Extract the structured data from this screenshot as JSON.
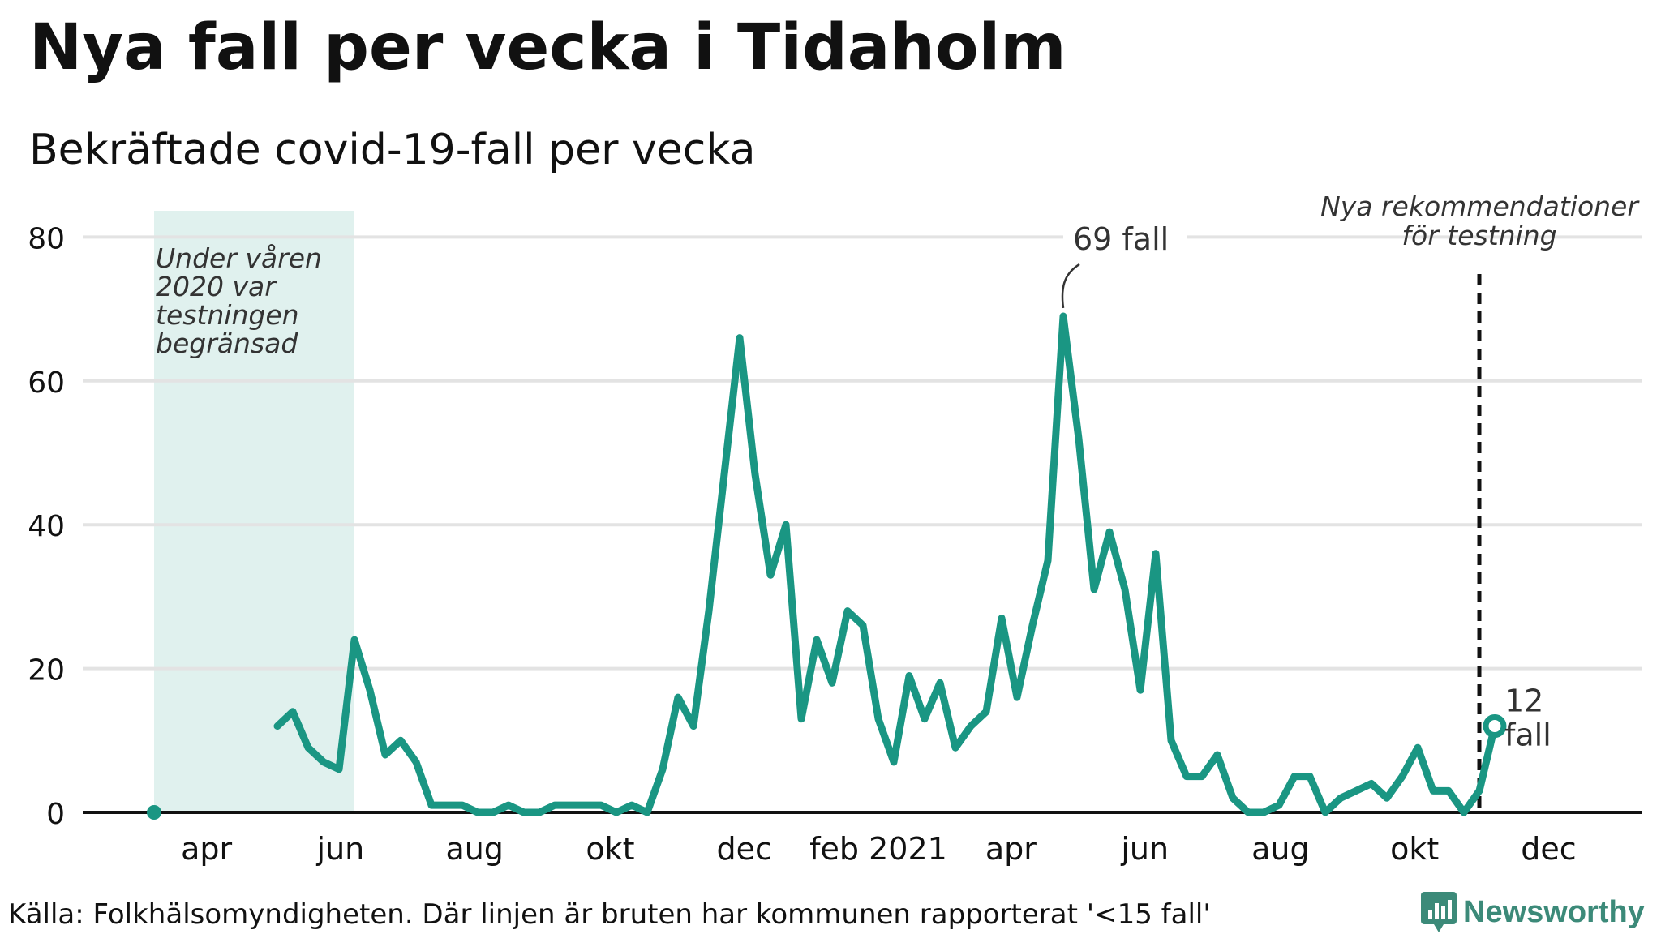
{
  "chart_data": {
    "type": "line",
    "title": "Nya fall per vecka i Tidaholm",
    "subtitle": "Bekräftade covid-19-fall per vecka",
    "xlabel": "",
    "ylabel": "",
    "ylim": [
      0,
      80
    ],
    "yticks": [
      0,
      20,
      40,
      60,
      80
    ],
    "xlim_weeks": [
      0,
      97
    ],
    "x_tick_labels": [
      {
        "label": "apr",
        "week": 3.4
      },
      {
        "label": "jun",
        "week": 12.1
      },
      {
        "label": "aug",
        "week": 20.8
      },
      {
        "label": "okt",
        "week": 29.6
      },
      {
        "label": "dec",
        "week": 38.3
      },
      {
        "label": "feb 2021",
        "week": 47.0
      },
      {
        "label": "apr",
        "week": 55.6
      },
      {
        "label": "jun",
        "week": 64.3
      },
      {
        "label": "aug",
        "week": 73.1
      },
      {
        "label": "okt",
        "week": 81.8
      },
      {
        "label": "dec",
        "week": 90.5
      }
    ],
    "series": [
      {
        "name": "Bekräftade covid-19-fall per vecka",
        "color": "#1a9683",
        "segments": [
          {
            "start_week": 0,
            "values": [
              0
            ]
          },
          {
            "start_week": 8,
            "values": [
              12,
              14,
              9,
              7,
              6,
              24,
              17,
              8,
              10,
              7,
              1,
              1,
              1,
              0,
              0,
              1,
              0,
              0,
              1,
              1,
              1,
              1,
              0,
              1,
              0,
              6,
              16,
              12,
              28,
              47,
              66,
              47,
              33,
              40,
              13,
              24,
              18,
              28,
              26,
              13,
              7,
              19,
              13,
              18,
              9,
              12,
              14,
              27,
              16,
              26,
              35,
              69,
              52,
              31,
              39,
              31,
              17,
              36,
              10,
              5,
              5,
              8,
              2,
              0,
              0,
              1,
              5,
              5,
              0,
              2,
              3,
              4,
              2,
              5,
              9,
              3,
              3,
              0,
              3,
              12
            ]
          }
        ]
      }
    ],
    "shaded_region": {
      "start_week": 0,
      "end_week": 13,
      "color": "#e0f1ee",
      "label": "Under våren 2020 var testningen begränsad"
    },
    "reference_line": {
      "week": 86,
      "label_line1": "Nya rekommendationer",
      "label_line2": "för testning"
    },
    "annotations": [
      {
        "text": "69 fall",
        "week": 59,
        "value": 69
      },
      {
        "text_line1": "12",
        "text_line2": "fall",
        "week": 87,
        "value": 12
      }
    ]
  },
  "footer": {
    "source": "Källa: Folkhälsomyndigheten. Där linjen är bruten har kommunen rapporterat '<15 fall'",
    "brand": "Newsworthy"
  },
  "colors": {
    "line": "#1a9683",
    "shade": "#e0f1ee",
    "grid": "#e3e3e3",
    "brand": "#3c8a79"
  }
}
